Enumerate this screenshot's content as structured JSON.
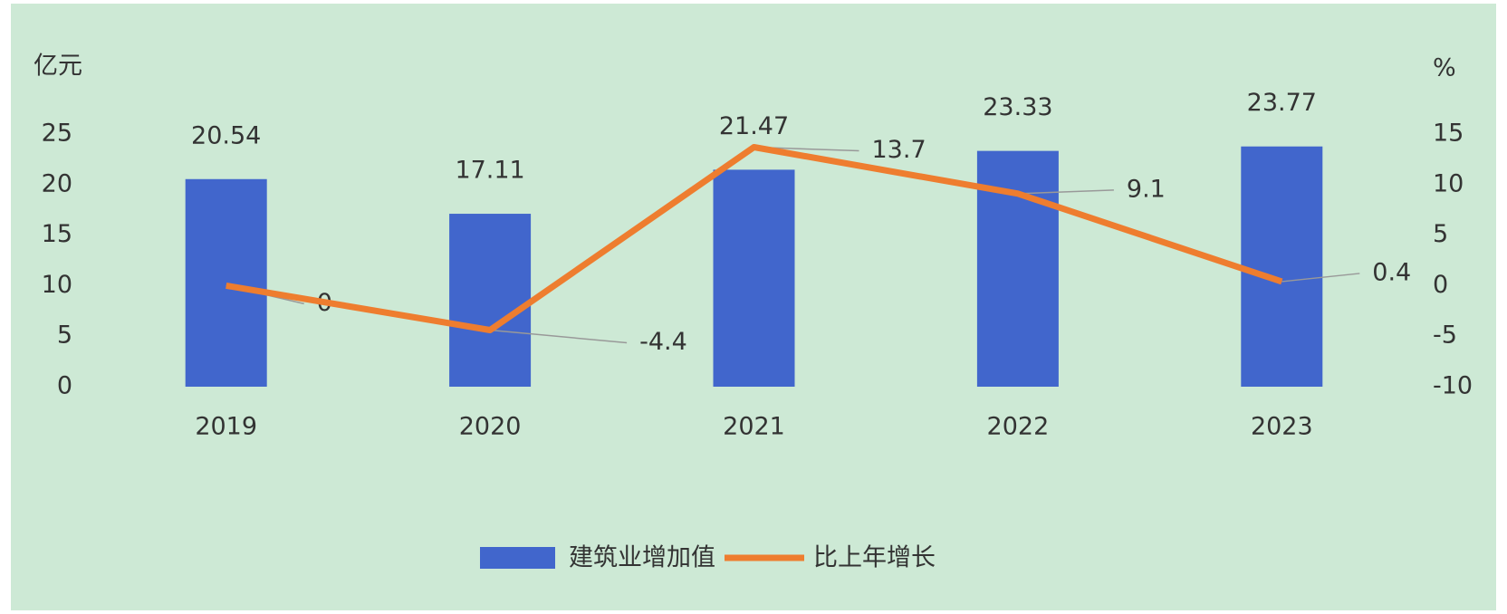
{
  "chart_data": {
    "type": "combo",
    "y_label": "亿元",
    "y2_label": "%",
    "categories": [
      "2019",
      "2020",
      "2021",
      "2022",
      "2023"
    ],
    "series": [
      {
        "name": "建筑业增加值",
        "type": "bar",
        "color": "#4166cc",
        "values": [
          20.54,
          17.11,
          21.47,
          23.33,
          23.77
        ]
      },
      {
        "name": "比上年增长",
        "type": "line",
        "color": "#ee7d2f",
        "axis": "y2",
        "values": [
          0,
          -4.4,
          13.7,
          9.1,
          0.4
        ]
      }
    ],
    "ylim": [
      0,
      25
    ],
    "yticks": [
      0,
      5,
      10,
      15,
      20,
      25
    ],
    "y2lim": [
      -10,
      15
    ],
    "y2ticks": [
      -10,
      -5,
      0,
      5,
      10,
      15
    ],
    "grid": false
  }
}
